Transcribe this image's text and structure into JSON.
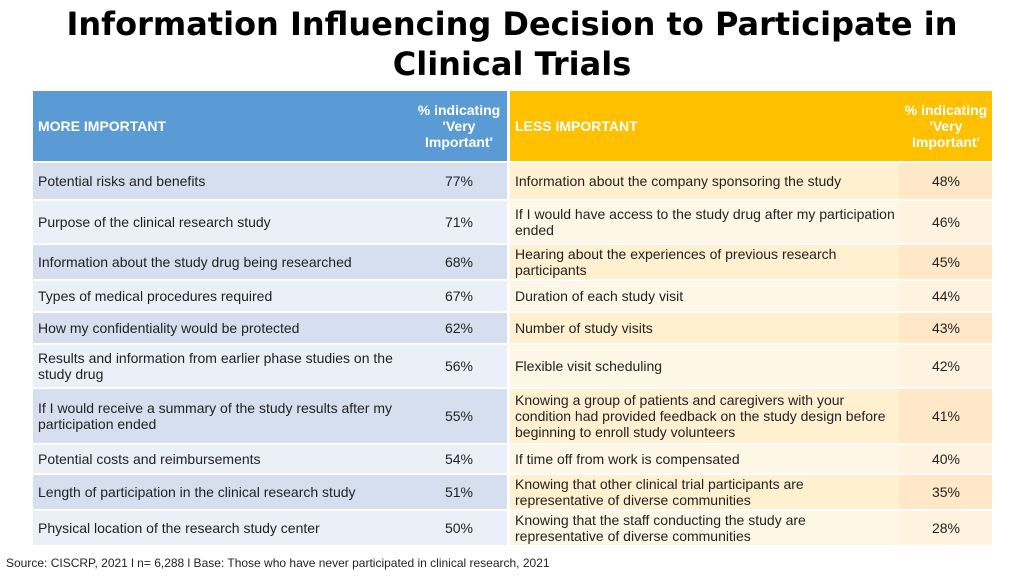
{
  "title": "Information Influencing Decision to Participate in Clinical Trials",
  "table": {
    "more_header": "MORE IMPORTANT",
    "more_pct_header": "% indicating 'Very Important'",
    "less_header": "LESS IMPORTANT",
    "less_pct_header": "% indicating 'Very Important'",
    "rows": [
      {
        "more": "Potential risks and benefits",
        "more_pct": "77%",
        "less": "Information about the company sponsoring the study",
        "less_pct": "48%"
      },
      {
        "more": "Purpose of the clinical research study",
        "more_pct": "71%",
        "less": "If I would have access to the study drug after my participation ended",
        "less_pct": "46%"
      },
      {
        "more": "Information about the study drug being researched",
        "more_pct": "68%",
        "less": "Hearing about the experiences of previous research participants",
        "less_pct": "45%"
      },
      {
        "more": "Types of medical procedures required",
        "more_pct": "67%",
        "less": "Duration of each study visit",
        "less_pct": "44%"
      },
      {
        "more": "How my confidentiality would be protected",
        "more_pct": "62%",
        "less": "Number of study visits",
        "less_pct": "43%"
      },
      {
        "more": "Results and information from earlier phase studies on the study drug",
        "more_pct": "56%",
        "less": "Flexible visit scheduling",
        "less_pct": "42%"
      },
      {
        "more": "If I would receive a summary of the study results after my participation ended",
        "more_pct": "55%",
        "less": "Knowing a group of patients and caregivers with your condition had provided feedback on the study design before beginning to enroll study volunteers",
        "less_pct": "41%"
      },
      {
        "more": "Potential costs and reimbursements",
        "more_pct": "54%",
        "less": "If time off from work is compensated",
        "less_pct": "40%"
      },
      {
        "more": "Length of participation in the clinical research study",
        "more_pct": "51%",
        "less": "Knowing that other clinical trial participants are representative of diverse communities",
        "less_pct": "35%"
      },
      {
        "more": "Physical location of the research study center",
        "more_pct": "50%",
        "less": "Knowing that the staff conducting the study are representative of diverse communities",
        "less_pct": "28%"
      }
    ]
  },
  "source": "Source: CISCRP, 2021 l n= 6,288 l Base: Those who have never participated in clinical research, 2021",
  "colors": {
    "more_header": "#5b9bd5",
    "less_header": "#ffc000",
    "more_cell": "#d6dff0",
    "less_cell": "#fff0d0"
  }
}
